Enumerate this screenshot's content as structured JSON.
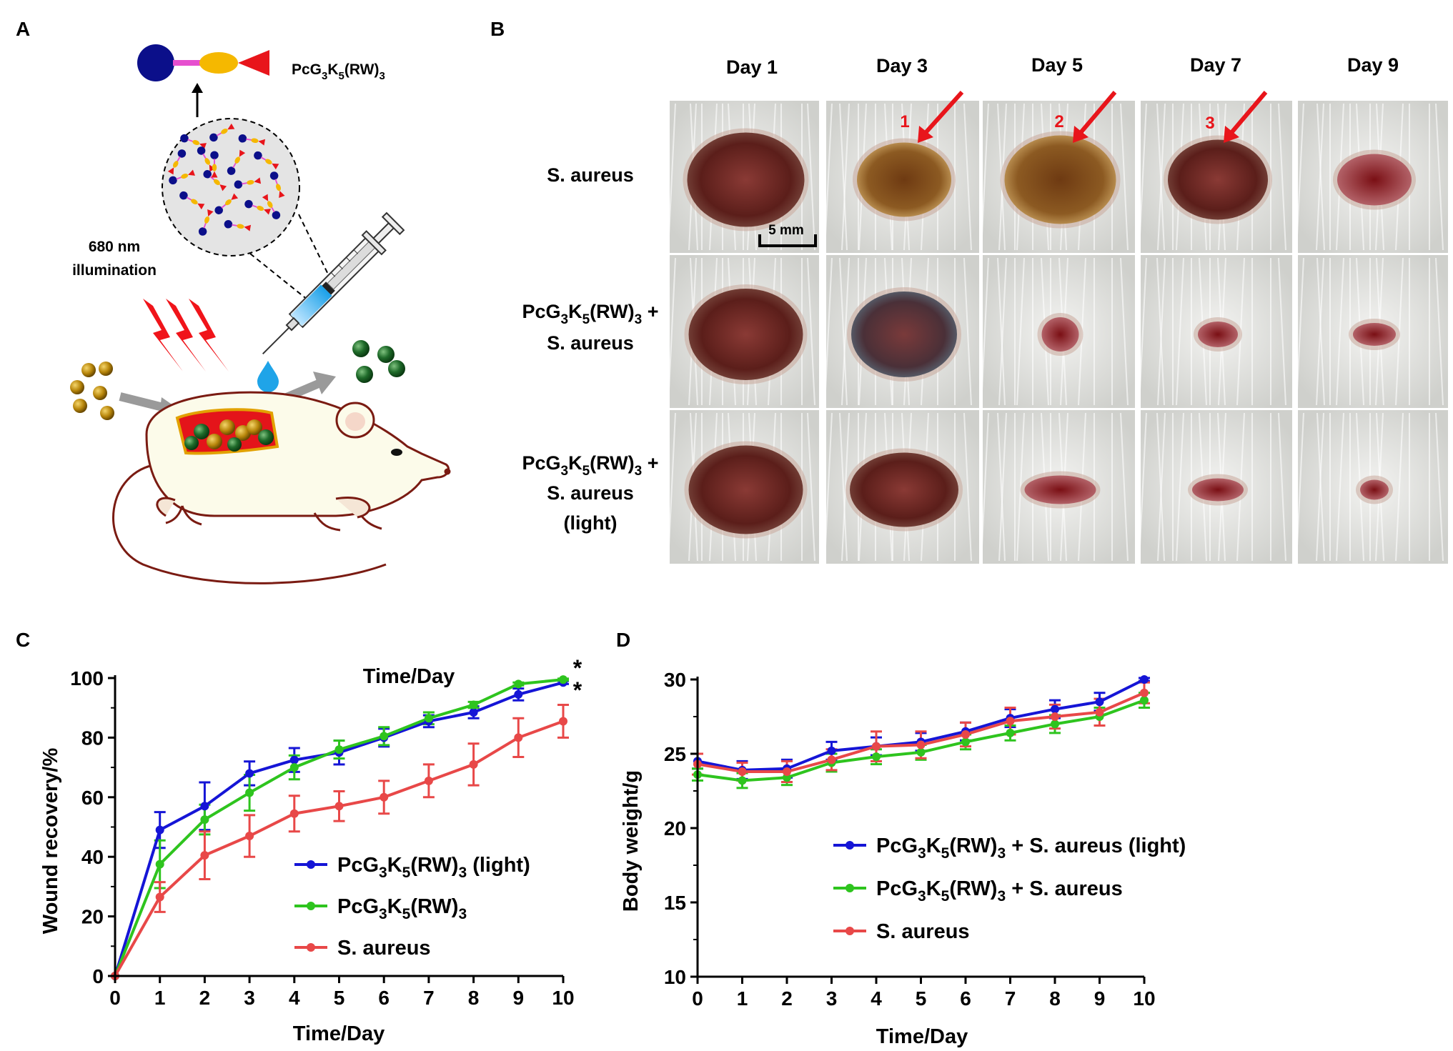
{
  "panels": {
    "a": "A",
    "b": "B",
    "c": "C",
    "d": "D"
  },
  "panel_a": {
    "molecule": {
      "base": "PcG",
      "sub1": "3",
      "k": "K",
      "sub2": "5",
      "rw": "(RW)",
      "sub3": "3"
    },
    "illumination": [
      "680 nm",
      "illumination"
    ],
    "colors": {
      "pc": "#0b0f8a",
      "linker": "#e64fcf",
      "spacer": "#f5b800",
      "peptide": "#e8151b"
    }
  },
  "panel_b": {
    "days": [
      "Day 1",
      "Day 3",
      "Day 5",
      "Day 7",
      "Day 9"
    ],
    "rows": [
      {
        "lines": [
          {
            "plain": "S. aureus"
          }
        ]
      },
      {
        "lines": [
          {
            "molecule": true,
            "suffix": " +"
          },
          {
            "plain": "S. aureus"
          }
        ]
      },
      {
        "lines": [
          {
            "molecule": true,
            "suffix": " +"
          },
          {
            "plain": "S. aureus"
          },
          {
            "plain": "(light)"
          }
        ]
      }
    ],
    "arrows": [
      "1",
      "2",
      "3"
    ],
    "scale_bar": "5 mm"
  },
  "chart_data": [
    {
      "type": "line",
      "panel": "C",
      "title": "Time/Day",
      "xlabel": "Time/Day",
      "ylabel": "Wound recovery/%",
      "xlim": [
        0,
        10
      ],
      "ylim": [
        0,
        100
      ],
      "x": [
        0,
        1,
        2,
        3,
        4,
        5,
        6,
        7,
        8,
        9,
        10
      ],
      "yticks": [
        0,
        20,
        40,
        60,
        80,
        100
      ],
      "significance": [
        "*",
        "*"
      ],
      "series": [
        {
          "name": "PcG3K5(RW)3 (light)",
          "legend": {
            "suffix": " (light)"
          },
          "color": "#1515d6",
          "values": [
            0,
            49,
            57,
            68,
            72.5,
            75,
            80,
            85.5,
            88.5,
            94.5,
            98.5
          ],
          "errors": [
            0,
            6,
            8,
            4,
            4,
            4,
            3,
            2,
            2,
            2,
            0.5
          ]
        },
        {
          "name": "PcG3K5(RW)3",
          "legend": {
            "suffix": ""
          },
          "color": "#2ec41e",
          "values": [
            0,
            37.5,
            52.5,
            61.5,
            70,
            76,
            80.5,
            86.5,
            91,
            98,
            99.5
          ],
          "errors": [
            0,
            8,
            5,
            6,
            4,
            3,
            3,
            2,
            1,
            0.5,
            0.3
          ]
        },
        {
          "name": "S. aureus",
          "legend": {
            "plain": "S. aureus"
          },
          "color": "#e84848",
          "values": [
            0,
            26.5,
            40.5,
            47,
            54.5,
            57,
            60,
            65.5,
            71,
            80,
            85.5
          ],
          "errors": [
            0,
            5,
            8,
            7,
            6,
            5,
            5.5,
            5.5,
            7,
            6.5,
            5.5
          ]
        }
      ]
    },
    {
      "type": "line",
      "panel": "D",
      "xlabel": "Time/Day",
      "ylabel": "Body weight/g",
      "xlim": [
        0,
        10
      ],
      "ylim": [
        10,
        30
      ],
      "x": [
        0,
        1,
        2,
        3,
        4,
        5,
        6,
        7,
        8,
        9,
        10
      ],
      "yticks": [
        10,
        15,
        20,
        25,
        30
      ],
      "series": [
        {
          "name": "PcG3K5(RW)3 + S. aureus (light)",
          "legend": {
            "suffix": " + S. aureus (light)"
          },
          "color": "#1515d6",
          "values": [
            24.5,
            23.9,
            24,
            25.2,
            25.5,
            25.8,
            26.5,
            27.4,
            28,
            28.5,
            30
          ],
          "errors": [
            0.5,
            0.6,
            0.6,
            0.6,
            0.6,
            0.6,
            0.6,
            0.6,
            0.6,
            0.6,
            0.1
          ]
        },
        {
          "name": "PcG3K5(RW)3 + S. aureus",
          "legend": {
            "suffix": " + S. aureus"
          },
          "color": "#2ec41e",
          "values": [
            23.6,
            23.2,
            23.4,
            24.4,
            24.8,
            25.1,
            25.8,
            26.4,
            27,
            27.5,
            28.6
          ],
          "errors": [
            0.4,
            0.5,
            0.5,
            0.6,
            0.5,
            0.5,
            0.5,
            0.5,
            0.6,
            0.6,
            0.5
          ]
        },
        {
          "name": "S. aureus",
          "legend": {
            "plain": "S. aureus"
          },
          "color": "#e84848",
          "values": [
            24.3,
            23.8,
            23.8,
            24.6,
            25.5,
            25.6,
            26.3,
            27.2,
            27.5,
            27.8,
            29.1
          ],
          "errors": [
            0.7,
            0.6,
            0.7,
            0.7,
            1,
            0.9,
            0.8,
            0.9,
            0.8,
            0.9,
            0.7
          ]
        }
      ]
    }
  ]
}
